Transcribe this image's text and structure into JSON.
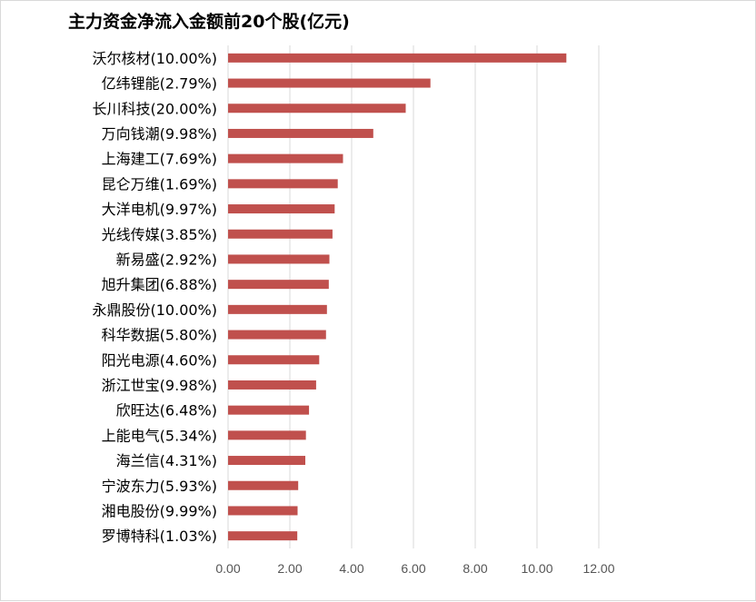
{
  "chart_data": {
    "type": "bar",
    "orientation": "horizontal",
    "title": "主力资金净流入金额前20个股(亿元)",
    "categories": [
      "沃尔核材(10.00%)",
      "亿纬锂能(2.79%)",
      "长川科技(20.00%)",
      "万向钱潮(9.98%)",
      "上海建工(7.69%)",
      "昆仑万维(1.69%)",
      "大洋电机(9.97%)",
      "光线传媒(3.85%)",
      "新易盛(2.92%)",
      "旭升集团(6.88%)",
      "永鼎股份(10.00%)",
      "科华数据(5.80%)",
      "阳光电源(4.60%)",
      "浙江世宝(9.98%)",
      "欣旺达(6.48%)",
      "上能电气(5.34%)",
      "海兰信(4.31%)",
      "宁波东力(5.93%)",
      "湘电股份(9.99%)",
      "罗博特科(1.03%)"
    ],
    "values": [
      10.95,
      6.55,
      5.75,
      4.7,
      3.72,
      3.55,
      3.45,
      3.38,
      3.28,
      3.26,
      3.2,
      3.17,
      2.95,
      2.85,
      2.62,
      2.52,
      2.5,
      2.27,
      2.25,
      2.24
    ],
    "xlim": [
      0,
      12
    ],
    "xticks": [
      "0.00",
      "2.00",
      "4.00",
      "6.00",
      "8.00",
      "10.00",
      "12.00"
    ],
    "grid": "vertical",
    "legend": "none",
    "bar_color": "#c0504d",
    "grid_color": "#d9d9d9"
  }
}
